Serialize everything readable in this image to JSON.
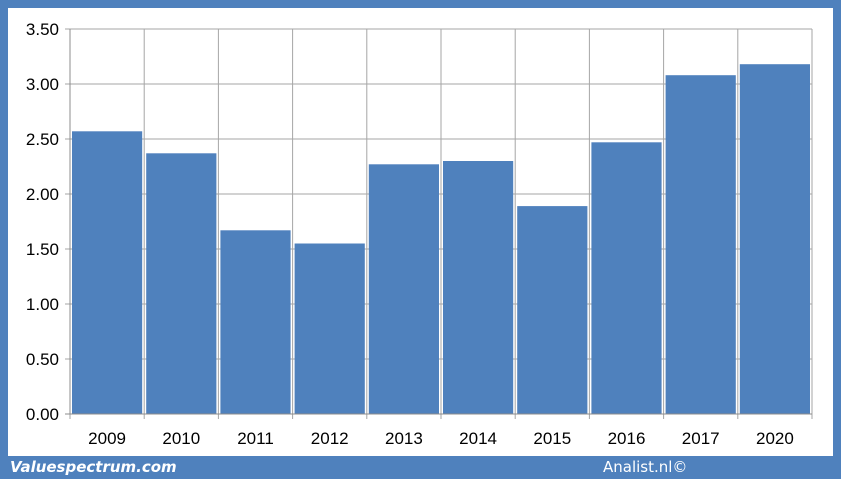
{
  "chart_data": {
    "type": "bar",
    "categories": [
      "2009",
      "2010",
      "2011",
      "2012",
      "2013",
      "2014",
      "2015",
      "2016",
      "2017",
      "2020"
    ],
    "values": [
      2.57,
      2.37,
      1.67,
      1.55,
      2.27,
      2.3,
      1.89,
      2.47,
      3.08,
      3.18
    ],
    "title": "",
    "xlabel": "",
    "ylabel": "",
    "ylim": [
      0,
      3.5
    ],
    "yticks": [
      "0.00",
      "0.50",
      "1.00",
      "1.50",
      "2.00",
      "2.50",
      "3.00",
      "3.50"
    ],
    "grid": true,
    "bar_color": "#4f81bd"
  },
  "footer": {
    "left": "Valuespectrum.com",
    "right": "Analist.nl©"
  }
}
